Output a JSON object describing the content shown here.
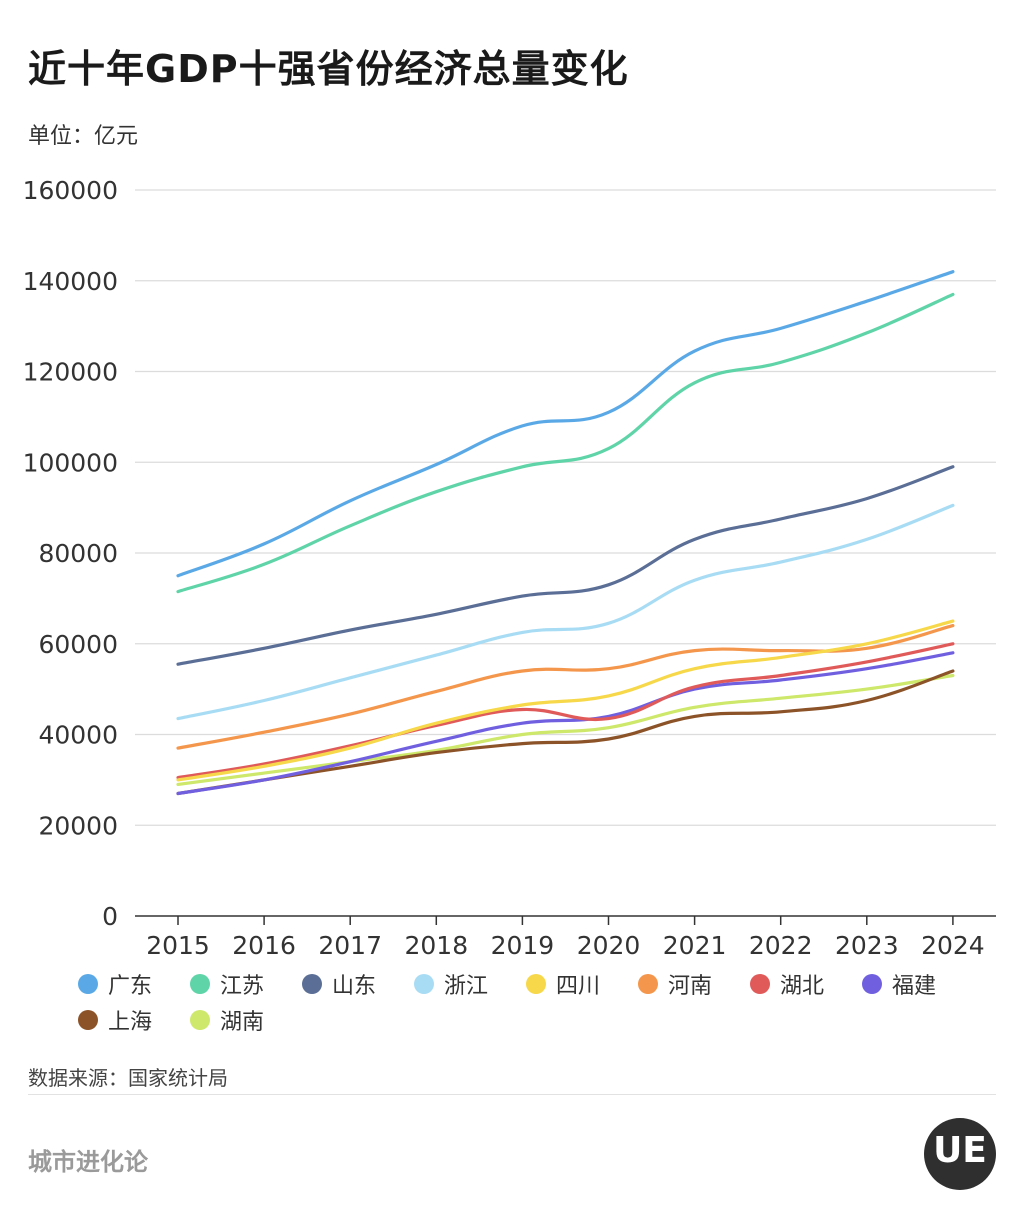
{
  "header": {
    "title": "近十年GDP十强省份经济总量变化",
    "unit": "单位：亿元"
  },
  "footer": {
    "source": "数据来源：国家统计局",
    "brand": "城市进化论",
    "logo_text": "UE"
  },
  "chart_data": {
    "type": "line",
    "title": "近十年GDP十强省份经济总量变化",
    "ylabel": "单位：亿元",
    "xlabel": "",
    "x": [
      "2015",
      "2016",
      "2017",
      "2018",
      "2019",
      "2020",
      "2021",
      "2022",
      "2023",
      "2024"
    ],
    "ylim": [
      0,
      160000
    ],
    "yticks": [
      "0",
      "20000",
      "40000",
      "60000",
      "80000",
      "100000",
      "120000",
      "140000",
      "160000"
    ],
    "grid": true,
    "legend_position": "bottom",
    "series": [
      {
        "name": "广东",
        "color": "#5aa9e6",
        "values": [
          75000,
          82000,
          91500,
          99500,
          108000,
          111000,
          124500,
          129500,
          135500,
          142000
        ]
      },
      {
        "name": "江苏",
        "color": "#5fd4a8",
        "values": [
          71500,
          77500,
          86000,
          93500,
          99000,
          103000,
          117500,
          122000,
          128500,
          137000
        ]
      },
      {
        "name": "山东",
        "color": "#5a6e96",
        "values": [
          55500,
          59000,
          63000,
          66500,
          70500,
          73000,
          83000,
          87500,
          92000,
          99000
        ]
      },
      {
        "name": "浙江",
        "color": "#a8dcf4",
        "values": [
          43500,
          47500,
          52500,
          57500,
          62500,
          64500,
          74000,
          78000,
          83000,
          90500
        ]
      },
      {
        "name": "四川",
        "color": "#f6d84a",
        "values": [
          30000,
          33000,
          37000,
          42500,
          46500,
          48500,
          54500,
          57000,
          60000,
          65000
        ]
      },
      {
        "name": "河南",
        "color": "#f4964b",
        "values": [
          37000,
          40500,
          44500,
          49500,
          54000,
          54500,
          58500,
          58500,
          59000,
          64000
        ]
      },
      {
        "name": "湖北",
        "color": "#e05a5a",
        "values": [
          30500,
          33500,
          37500,
          42000,
          45500,
          43500,
          50500,
          53000,
          56000,
          60000
        ]
      },
      {
        "name": "福建",
        "color": "#7060e0",
        "values": [
          27000,
          30000,
          34000,
          38500,
          42500,
          44000,
          50000,
          52000,
          54500,
          58000
        ]
      },
      {
        "name": "上海",
        "color": "#8c5328",
        "values": [
          27000,
          30000,
          33000,
          36000,
          38000,
          39000,
          44000,
          45000,
          47500,
          54000
        ]
      },
      {
        "name": "湖南",
        "color": "#cde86a",
        "values": [
          29000,
          31500,
          34000,
          36500,
          40000,
          41500,
          46000,
          48000,
          50000,
          53000
        ]
      }
    ]
  }
}
